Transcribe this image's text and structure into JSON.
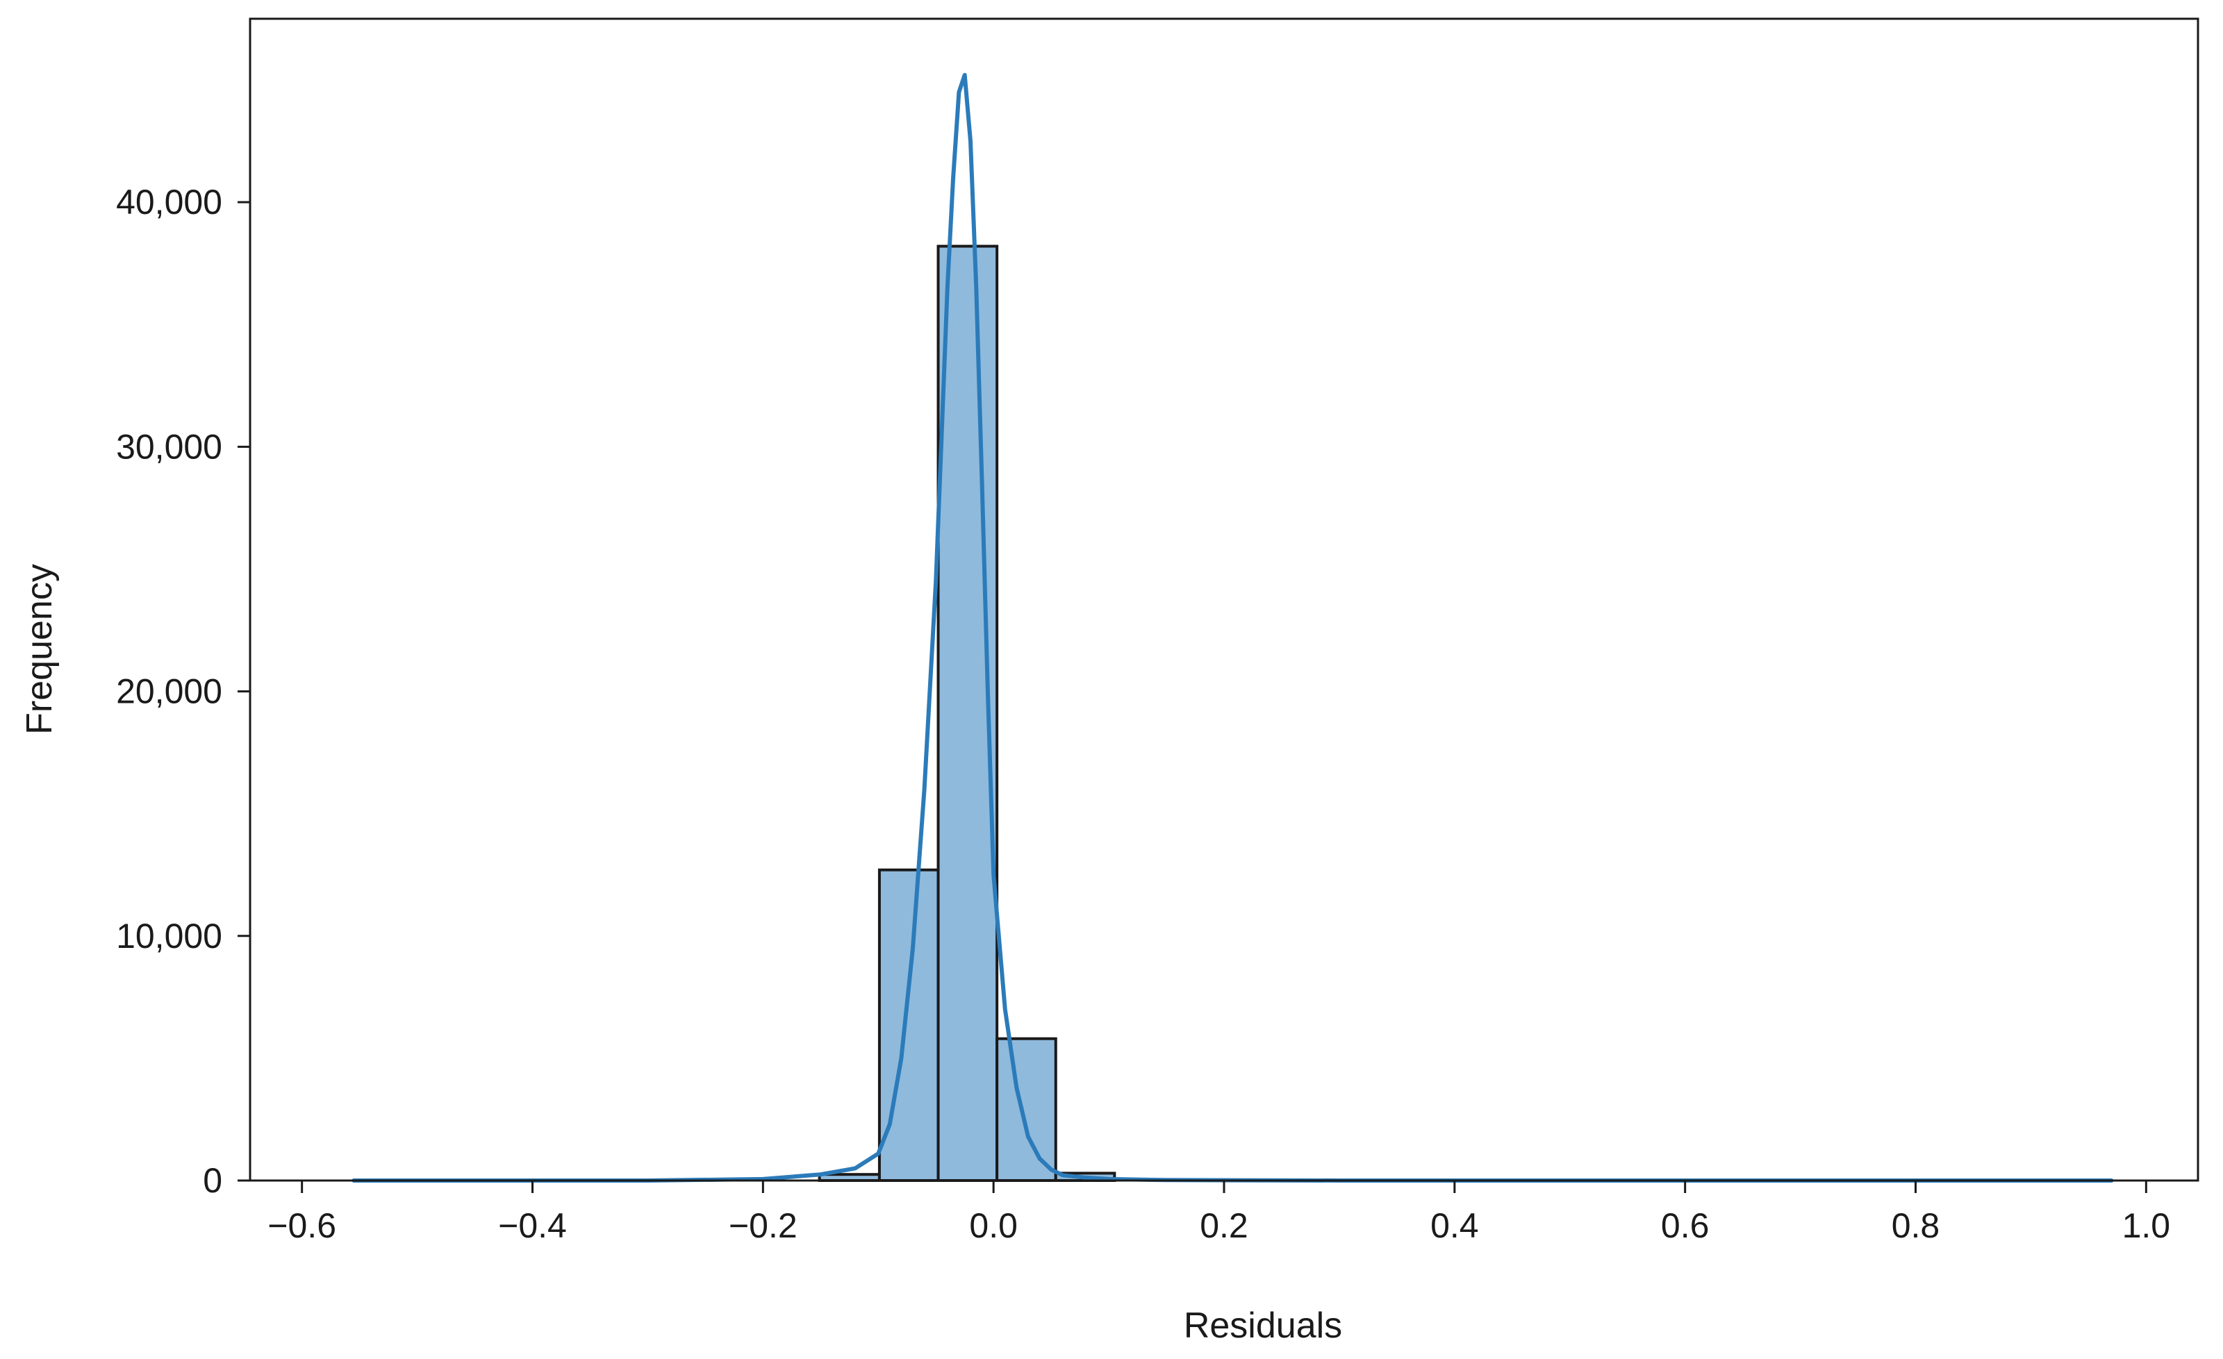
{
  "chart_data": {
    "type": "bar",
    "subtype": "histogram-with-kde",
    "title": "",
    "xlabel": "Residuals",
    "ylabel": "Frequency",
    "xlim": [
      -0.645,
      1.045
    ],
    "ylim": [
      0,
      47500
    ],
    "x_ticks": [
      -0.6,
      -0.4,
      -0.2,
      0.0,
      0.2,
      0.4,
      0.6,
      0.8,
      1.0
    ],
    "x_tick_labels": [
      "−0.6",
      "−0.4",
      "−0.2",
      "0.0",
      "0.2",
      "0.4",
      "0.6",
      "0.8",
      "1.0"
    ],
    "y_ticks": [
      0,
      10000,
      20000,
      30000,
      40000
    ],
    "y_tick_labels": [
      "0",
      "10,000",
      "20,000",
      "30,000",
      "40,000"
    ],
    "grid": false,
    "legend": "none",
    "colors": {
      "bar_fill": "#8fbadc",
      "bar_edge": "#1a1a1a",
      "kde_line": "#2b7bba",
      "axis": "#1a1a1a"
    },
    "bins": [
      {
        "x0": -0.151,
        "x1": -0.099,
        "count": 250
      },
      {
        "x0": -0.099,
        "x1": -0.048,
        "count": 12700
      },
      {
        "x0": -0.048,
        "x1": 0.003,
        "count": 38200
      },
      {
        "x0": 0.003,
        "x1": 0.054,
        "count": 5800
      },
      {
        "x0": 0.054,
        "x1": 0.105,
        "count": 300
      }
    ],
    "kde": {
      "name": "",
      "x": [
        -0.555,
        -0.3,
        -0.2,
        -0.15,
        -0.12,
        -0.1,
        -0.09,
        -0.08,
        -0.07,
        -0.06,
        -0.05,
        -0.045,
        -0.04,
        -0.035,
        -0.03,
        -0.025,
        -0.02,
        -0.015,
        -0.01,
        -0.005,
        0.0,
        0.01,
        0.02,
        0.03,
        0.04,
        0.05,
        0.06,
        0.08,
        0.1,
        0.15,
        0.3,
        0.97
      ],
      "y": [
        0,
        0,
        60,
        250,
        500,
        1100,
        2300,
        5000,
        9500,
        16000,
        24500,
        30500,
        36500,
        41000,
        44500,
        45200,
        42500,
        36500,
        28500,
        20000,
        12500,
        7000,
        3800,
        1800,
        900,
        450,
        220,
        120,
        60,
        20,
        0,
        0
      ]
    }
  }
}
